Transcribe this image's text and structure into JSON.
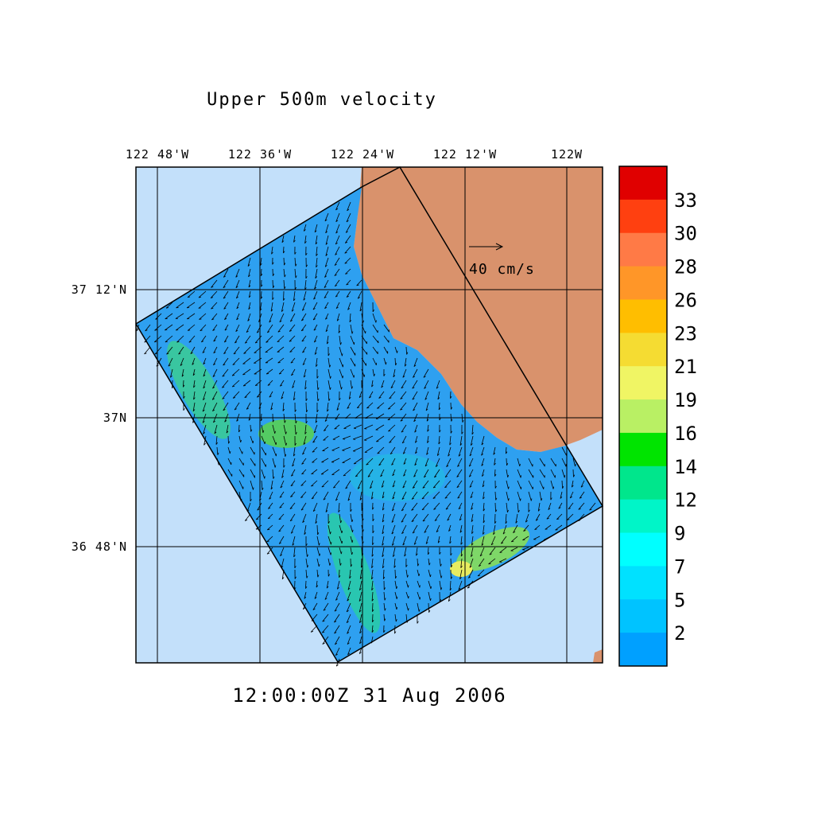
{
  "title": "Upper 500m velocity",
  "time_label": "12:00:00Z  31 Aug 2006",
  "lon_labels": [
    "122 48'W",
    "122 36'W",
    "122 24'W",
    "122 12'W",
    "122W"
  ],
  "lat_labels": [
    "37 12'N",
    "37N",
    "36 48'N"
  ],
  "reference_arrow": "40 cm/s",
  "colorbar": {
    "labels": [
      "33",
      "30",
      "28",
      "26",
      "23",
      "21",
      "19",
      "16",
      "14",
      "12",
      "9",
      "7",
      "5",
      "2"
    ],
    "colors": [
      "#e00000",
      "#ff4010",
      "#ff7a46",
      "#ff9628",
      "#ffbe00",
      "#f5dc32",
      "#f0f564",
      "#b9f064",
      "#00e400",
      "#00e68c",
      "#00f5c8",
      "#00ffff",
      "#00e1ff",
      "#00c3ff",
      "#00a0ff"
    ]
  }
}
